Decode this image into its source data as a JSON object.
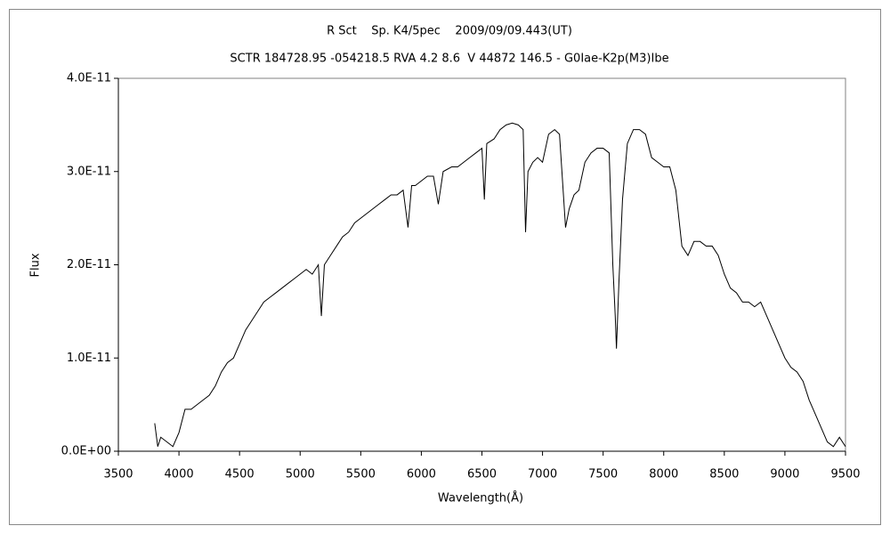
{
  "chart_data": {
    "type": "line",
    "title": "R Sct    Sp. K4/5pec    2009/09/09.443(UT)",
    "subtitle": "SCTR 184728.95 -054218.5 RVA 4.2 8.6  V 44872 146.5 - G0Iae-K2p(M3)Ibe",
    "x_label": "Wavelength(Å)",
    "y_label": "Flux",
    "color": "#000000",
    "grid": false,
    "xlim": [
      3500,
      9500
    ],
    "xticks": [
      3500,
      4000,
      4500,
      5000,
      5500,
      6000,
      6500,
      7000,
      7500,
      8000,
      8500,
      9000,
      9500
    ],
    "ylim": [
      0,
      4e-11
    ],
    "yticks": [
      {
        "value": 0,
        "label": "0.0E+00"
      },
      {
        "value": 1e-11,
        "label": "1.0E-11"
      },
      {
        "value": 2e-11,
        "label": "2.0E-11"
      },
      {
        "value": 3e-11,
        "label": "3.0E-11"
      },
      {
        "value": 4e-11,
        "label": "4.0E-11"
      }
    ],
    "x": [
      3800,
      3825,
      3850,
      3900,
      3950,
      4000,
      4050,
      4100,
      4150,
      4200,
      4250,
      4300,
      4350,
      4400,
      4450,
      4500,
      4550,
      4600,
      4650,
      4700,
      4750,
      4800,
      4850,
      4900,
      4950,
      5000,
      5050,
      5100,
      5150,
      5175,
      5200,
      5250,
      5300,
      5350,
      5400,
      5450,
      5500,
      5550,
      5600,
      5650,
      5700,
      5750,
      5800,
      5850,
      5890,
      5920,
      5950,
      6000,
      6050,
      6100,
      6140,
      6180,
      6250,
      6300,
      6350,
      6400,
      6450,
      6500,
      6520,
      6540,
      6600,
      6650,
      6700,
      6750,
      6800,
      6840,
      6860,
      6880,
      6920,
      6960,
      7000,
      7050,
      7100,
      7140,
      7170,
      7190,
      7220,
      7260,
      7300,
      7350,
      7400,
      7450,
      7500,
      7550,
      7580,
      7600,
      7610,
      7630,
      7660,
      7700,
      7750,
      7800,
      7850,
      7900,
      7950,
      8000,
      8050,
      8100,
      8150,
      8200,
      8250,
      8300,
      8350,
      8400,
      8450,
      8500,
      8550,
      8600,
      8650,
      8700,
      8750,
      8800,
      8850,
      8900,
      8950,
      9000,
      9050,
      9100,
      9150,
      9200,
      9250,
      9300,
      9350,
      9400,
      9450,
      9500
    ],
    "values": [
      3e-12,
      5e-13,
      1.5e-12,
      1e-12,
      5e-13,
      2e-12,
      4.5e-12,
      4.5e-12,
      5e-12,
      5.5e-12,
      6e-12,
      7e-12,
      8.5e-12,
      9.5e-12,
      1e-11,
      1.15e-11,
      1.3e-11,
      1.4e-11,
      1.5e-11,
      1.6e-11,
      1.65e-11,
      1.7e-11,
      1.75e-11,
      1.8e-11,
      1.85e-11,
      1.9e-11,
      1.95e-11,
      1.9e-11,
      2e-11,
      1.45e-11,
      2e-11,
      2.1e-11,
      2.2e-11,
      2.3e-11,
      2.35e-11,
      2.45e-11,
      2.5e-11,
      2.55e-11,
      2.6e-11,
      2.65e-11,
      2.7e-11,
      2.75e-11,
      2.75e-11,
      2.8e-11,
      2.4e-11,
      2.85e-11,
      2.85e-11,
      2.9e-11,
      2.95e-11,
      2.95e-11,
      2.65e-11,
      3e-11,
      3.05e-11,
      3.05e-11,
      3.1e-11,
      3.15e-11,
      3.2e-11,
      3.25e-11,
      2.7e-11,
      3.3e-11,
      3.35e-11,
      3.45e-11,
      3.5e-11,
      3.52e-11,
      3.5e-11,
      3.45e-11,
      2.35e-11,
      3e-11,
      3.1e-11,
      3.15e-11,
      3.1e-11,
      3.4e-11,
      3.45e-11,
      3.4e-11,
      2.8e-11,
      2.4e-11,
      2.6e-11,
      2.75e-11,
      2.8e-11,
      3.1e-11,
      3.2e-11,
      3.25e-11,
      3.25e-11,
      3.2e-11,
      2e-11,
      1.45e-11,
      1.1e-11,
      1.8e-11,
      2.7e-11,
      3.3e-11,
      3.45e-11,
      3.45e-11,
      3.4e-11,
      3.15e-11,
      3.1e-11,
      3.05e-11,
      3.05e-11,
      2.8e-11,
      2.2e-11,
      2.1e-11,
      2.25e-11,
      2.25e-11,
      2.2e-11,
      2.2e-11,
      2.1e-11,
      1.9e-11,
      1.75e-11,
      1.7e-11,
      1.6e-11,
      1.6e-11,
      1.55e-11,
      1.6e-11,
      1.45e-11,
      1.3e-11,
      1.15e-11,
      1e-11,
      9e-12,
      8.5e-12,
      7.5e-12,
      5.5e-12,
      4e-12,
      2.5e-12,
      1e-12,
      5e-13,
      1.5e-12,
      5e-13
    ]
  }
}
